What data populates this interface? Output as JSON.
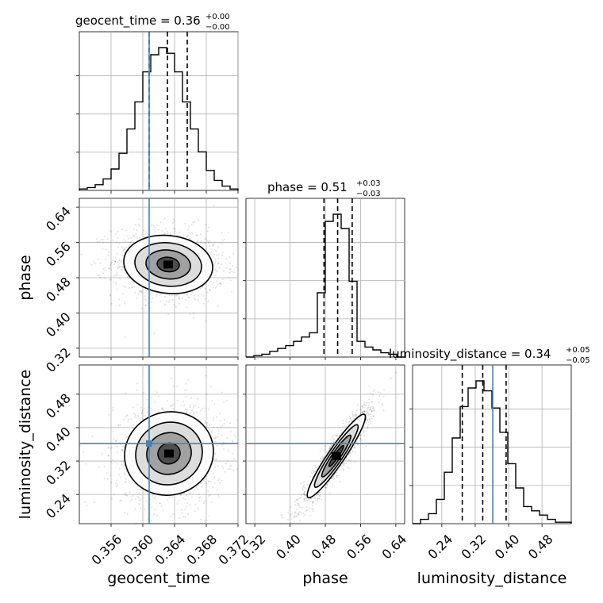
{
  "figure": {
    "type": "corner-plot",
    "parameters": [
      "geocent_time",
      "phase",
      "luminosity_distance"
    ]
  },
  "chart_data": {
    "type": "corner",
    "grid": true,
    "truth_color": "#4682b4",
    "hist_color": "#000000",
    "parameters": [
      {
        "name": "geocent_time",
        "label": "geocent_time",
        "title_prefix": "geocent_time = 0.36",
        "title_plus": "+0.00",
        "title_minus": "−0.00",
        "range": [
          0.352,
          0.372
        ],
        "ticks": [
          0.356,
          0.36,
          0.364,
          0.368,
          0.372
        ],
        "tick_labels": [
          "0.356",
          "0.360",
          "0.364",
          "0.368",
          "0.372"
        ],
        "truth": 0.3608,
        "quantiles": [
          0.3608,
          0.3631,
          0.3656
        ],
        "hist_bins": [
          0.352,
          0.353,
          0.354,
          0.355,
          0.356,
          0.357,
          0.358,
          0.359,
          0.36,
          0.361,
          0.362,
          0.363,
          0.364,
          0.365,
          0.366,
          0.367,
          0.368,
          0.369,
          0.37,
          0.371,
          0.372
        ],
        "hist_counts": [
          0.01,
          0.02,
          0.04,
          0.08,
          0.15,
          0.26,
          0.43,
          0.62,
          0.83,
          0.95,
          1.0,
          0.96,
          0.83,
          0.62,
          0.43,
          0.27,
          0.14,
          0.07,
          0.03,
          0.01
        ]
      },
      {
        "name": "phase",
        "label": "phase",
        "title_prefix": "phase = 0.51",
        "title_plus": "+0.03",
        "title_minus": "−0.03",
        "range": [
          0.3,
          0.66
        ],
        "ticks": [
          0.32,
          0.4,
          0.48,
          0.56,
          0.64
        ],
        "tick_labels": [
          "0.32",
          "0.40",
          "0.48",
          "0.56",
          "0.64"
        ],
        "truth": null,
        "quantiles": [
          0.477,
          0.508,
          0.541
        ],
        "hist_bins": [
          0.3,
          0.318,
          0.336,
          0.354,
          0.372,
          0.39,
          0.408,
          0.426,
          0.444,
          0.462,
          0.48,
          0.498,
          0.516,
          0.534,
          0.552,
          0.57,
          0.588,
          0.606,
          0.624,
          0.642,
          0.66
        ],
        "hist_counts": [
          0.0,
          0.01,
          0.02,
          0.04,
          0.06,
          0.08,
          0.11,
          0.14,
          0.17,
          0.45,
          0.95,
          1.0,
          0.9,
          0.53,
          0.11,
          0.07,
          0.05,
          0.03,
          0.02,
          0.0
        ]
      },
      {
        "name": "luminosity_distance",
        "label": "luminosity_distance",
        "title_prefix": "luminosity_distance = 0.34",
        "title_plus": "+0.05",
        "title_minus": "−0.05",
        "range": [
          0.17,
          0.55
        ],
        "ticks": [
          0.24,
          0.32,
          0.4,
          0.48
        ],
        "tick_labels": [
          "0.24",
          "0.32",
          "0.40",
          "0.48"
        ],
        "truth": 0.362,
        "quantiles": [
          0.289,
          0.338,
          0.394
        ],
        "hist_bins": [
          0.17,
          0.189,
          0.208,
          0.227,
          0.246,
          0.265,
          0.284,
          0.303,
          0.322,
          0.341,
          0.36,
          0.379,
          0.398,
          0.417,
          0.436,
          0.455,
          0.474,
          0.493,
          0.512,
          0.531,
          0.55
        ],
        "hist_counts": [
          0.0,
          0.03,
          0.07,
          0.17,
          0.36,
          0.6,
          0.82,
          0.95,
          1.0,
          0.93,
          0.81,
          0.64,
          0.42,
          0.25,
          0.12,
          0.09,
          0.06,
          0.03,
          0.01,
          0.01
        ]
      }
    ],
    "pairs": [
      {
        "x": "geocent_time",
        "y": "phase",
        "peak": [
          0.3632,
          0.51
        ],
        "sigma": [
          0.0028,
          0.033
        ],
        "rho": -0.1,
        "truth": [
          0.3608,
          null
        ]
      },
      {
        "x": "geocent_time",
        "y": "luminosity_distance",
        "peak": [
          0.3633,
          0.338
        ],
        "sigma": [
          0.0028,
          0.05
        ],
        "rho": 0.05,
        "truth": [
          0.3608,
          0.362
        ]
      },
      {
        "x": "phase",
        "y": "luminosity_distance",
        "peak": [
          0.505,
          0.332
        ],
        "sigma": [
          0.033,
          0.05
        ],
        "rho": 0.94,
        "truth": [
          null,
          0.362
        ]
      }
    ]
  }
}
